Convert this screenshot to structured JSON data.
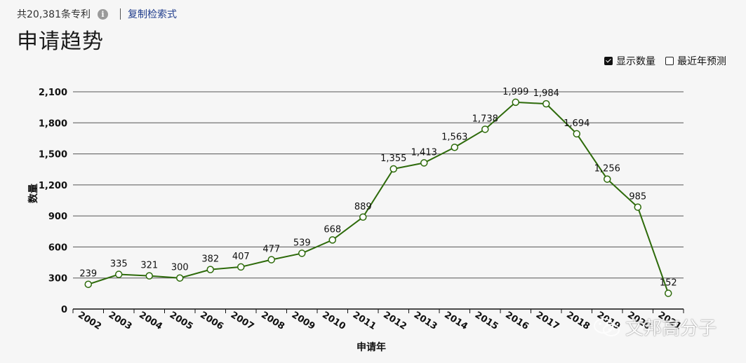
{
  "header": {
    "count_text": "共20,381条专利",
    "info_icon": "info-icon",
    "copy_link": "复制检索式",
    "title": "申请趋势"
  },
  "options": {
    "show_count_label": "显示数量",
    "show_count_checked": true,
    "forecast_label": "最近年预测",
    "forecast_checked": false
  },
  "watermark": {
    "text": "文邦高分子",
    "icon": "wechat-icon"
  },
  "colors": {
    "line": "#2d6a0a",
    "point_fill": "#ffffff",
    "grid": "#555555"
  },
  "chart_data": {
    "type": "line",
    "xlabel": "申请年",
    "ylabel": "数量",
    "ylim": [
      0,
      2100
    ],
    "yticks": [
      0,
      300,
      600,
      900,
      1200,
      1500,
      1800,
      2100
    ],
    "ytick_labels": [
      "0",
      "300",
      "600",
      "900",
      "1,200",
      "1,500",
      "1,800",
      "2,100"
    ],
    "categories": [
      "2002",
      "2003",
      "2004",
      "2005",
      "2006",
      "2007",
      "2008",
      "2009",
      "2010",
      "2011",
      "2012",
      "2013",
      "2014",
      "2015",
      "2016",
      "2017",
      "2018",
      "2019",
      "2020",
      "2021"
    ],
    "series": [
      {
        "values": [
          239,
          335,
          321,
          300,
          382,
          407,
          477,
          539,
          668,
          889,
          1355,
          1413,
          1563,
          1738,
          1999,
          1984,
          1694,
          1256,
          985,
          152
        ],
        "value_labels": [
          "239",
          "335",
          "321",
          "300",
          "382",
          "407",
          "477",
          "539",
          "668",
          "889",
          "1,355",
          "1,413",
          "1,563",
          "1,738",
          "1,999",
          "1,984",
          "1,694",
          "1,256",
          "985",
          "152"
        ]
      }
    ],
    "grid": true,
    "data_labels": true
  }
}
